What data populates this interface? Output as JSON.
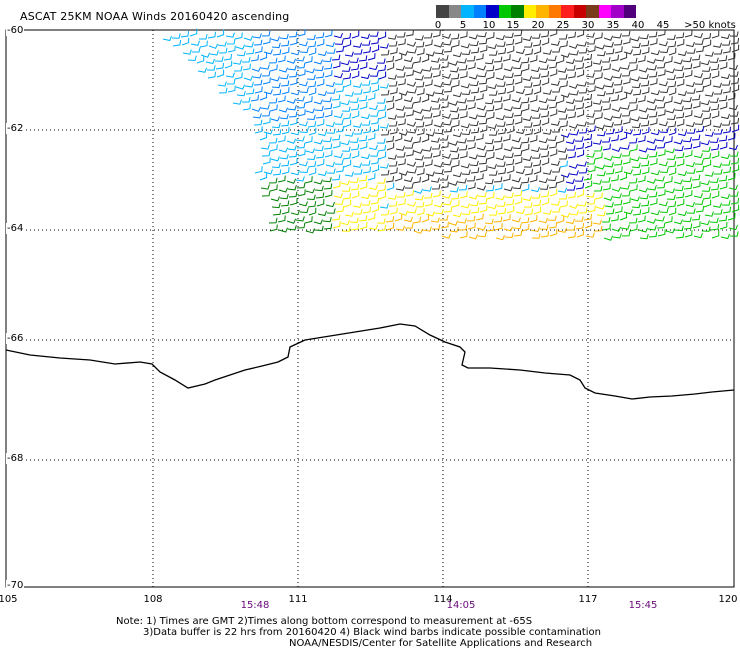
{
  "title": "ASCAT 25KM NOAA Winds 20160420 ascending",
  "legend": {
    "colors": [
      "#444444",
      "#888888",
      "#00b4ff",
      "#0080ff",
      "#0000c8",
      "#00c800",
      "#008000",
      "#ffee00",
      "#ffb400",
      "#ff7800",
      "#ff1e1e",
      "#c80000",
      "#7a3b1a",
      "#ff00ff",
      "#a000c8",
      "#50007a"
    ],
    "labels": [
      "0",
      "5",
      "10",
      "15",
      "20",
      "25",
      "30",
      "35",
      "40",
      "45",
      ">50 knots"
    ]
  },
  "axes": {
    "lat_labels": [
      "-60",
      "-62",
      "-64",
      "-66",
      "-68",
      "-70"
    ],
    "lon_labels": [
      "105",
      "108",
      "111",
      "114",
      "117",
      "120"
    ]
  },
  "times": [
    "15:48",
    "14:05",
    "15:45"
  ],
  "notes": {
    "line1": "Note: 1) Times are GMT 2)Times along bottom correspond to measurement at -65S",
    "line2": "3)Data buffer is 22 hrs from 20160420 4) Black wind barbs indicate possible contamination",
    "line3": "NOAA/NESDIS/Center for Satellite Applications and Research"
  },
  "icons": {
    "wind": "wind-barb-icon"
  }
}
